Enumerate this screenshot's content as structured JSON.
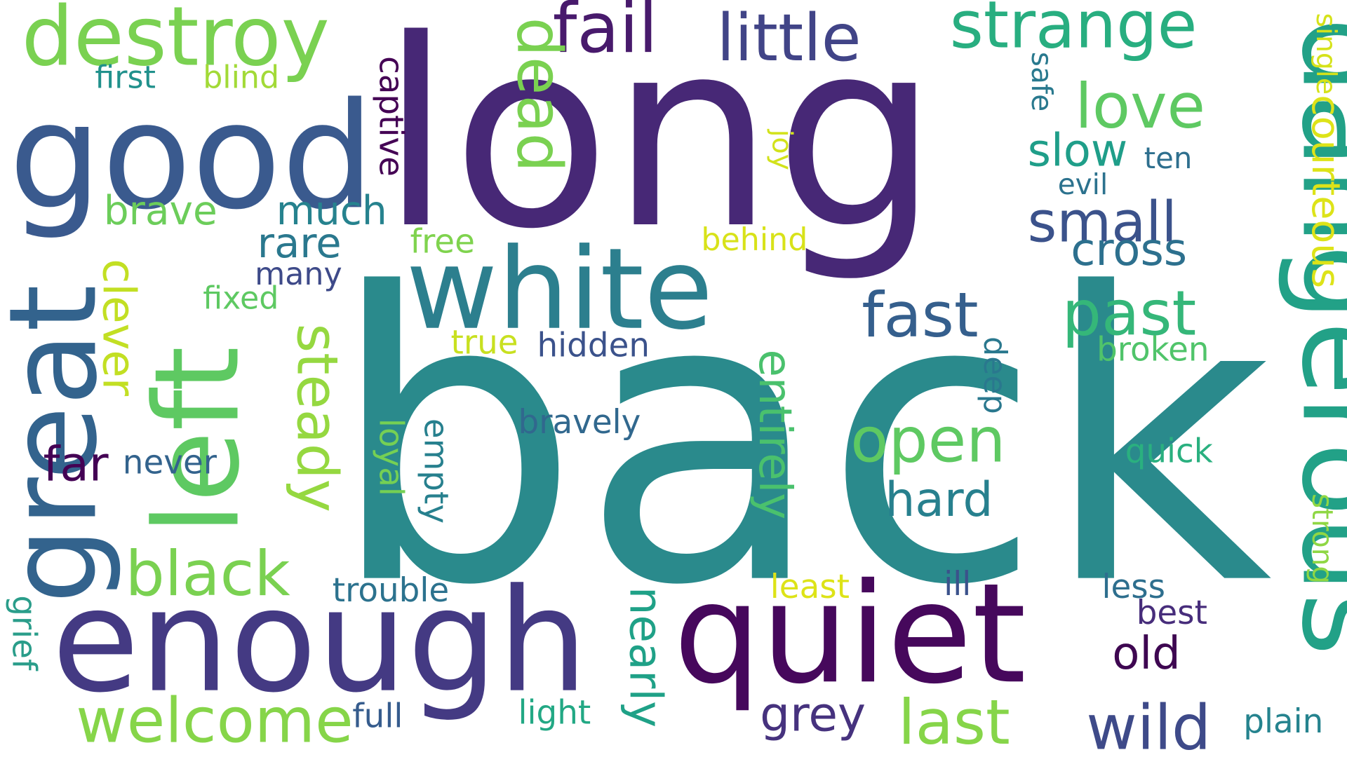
{
  "words": [
    {
      "text": "back",
      "color": "#2a8a8c"
    },
    {
      "text": "long",
      "color": "#472876"
    },
    {
      "text": "enough",
      "color": "#443a83"
    },
    {
      "text": "quiet",
      "color": "#46085c"
    },
    {
      "text": "good",
      "color": "#3a5a8e"
    },
    {
      "text": "white",
      "color": "#2c7f8e"
    },
    {
      "text": "dangerous",
      "color": "#22a187"
    },
    {
      "text": "great",
      "color": "#33638d"
    },
    {
      "text": "left",
      "color": "#5ec962"
    },
    {
      "text": "destroy",
      "color": "#7ad151"
    },
    {
      "text": "fail",
      "color": "#481a6c"
    },
    {
      "text": "little",
      "color": "#414487"
    },
    {
      "text": "strange",
      "color": "#28ae80"
    },
    {
      "text": "dead",
      "color": "#7ad151"
    },
    {
      "text": "love",
      "color": "#5ec962"
    },
    {
      "text": "courteous",
      "color": "#dde318"
    },
    {
      "text": "single",
      "color": "#d5e21a"
    },
    {
      "text": "first",
      "color": "#21918c"
    },
    {
      "text": "blind",
      "color": "#a2da37"
    },
    {
      "text": "captive",
      "color": "#440154"
    },
    {
      "text": "safe",
      "color": "#29798e"
    },
    {
      "text": "joy",
      "color": "#d2e21b"
    },
    {
      "text": "slow",
      "color": "#1f9e89"
    },
    {
      "text": "ten",
      "color": "#2e6f8e"
    },
    {
      "text": "evil",
      "color": "#2c728e"
    },
    {
      "text": "small",
      "color": "#3b528b"
    },
    {
      "text": "cross",
      "color": "#2d708e"
    },
    {
      "text": "brave",
      "color": "#6ccd5a"
    },
    {
      "text": "much",
      "color": "#26828e"
    },
    {
      "text": "rare",
      "color": "#2a788e"
    },
    {
      "text": "free",
      "color": "#7fd34e"
    },
    {
      "text": "behind",
      "color": "#d8e219"
    },
    {
      "text": "many",
      "color": "#3e4a89"
    },
    {
      "text": "fixed",
      "color": "#5ec962"
    },
    {
      "text": "steady",
      "color": "#95d840"
    },
    {
      "text": "clever",
      "color": "#c2df23"
    },
    {
      "text": "fast",
      "color": "#355f8d"
    },
    {
      "text": "past",
      "color": "#35b779"
    },
    {
      "text": "true",
      "color": "#c8e020"
    },
    {
      "text": "hidden",
      "color": "#3b528b"
    },
    {
      "text": "deep",
      "color": "#2a788e"
    },
    {
      "text": "broken",
      "color": "#50c46a"
    },
    {
      "text": "entirely",
      "color": "#4ac16d"
    },
    {
      "text": "open",
      "color": "#5ec962"
    },
    {
      "text": "bravely",
      "color": "#31688e"
    },
    {
      "text": "far",
      "color": "#440154"
    },
    {
      "text": "never",
      "color": "#33638d"
    },
    {
      "text": "loyal",
      "color": "#75d054"
    },
    {
      "text": "empty",
      "color": "#27808e"
    },
    {
      "text": "quick",
      "color": "#2ab07f"
    },
    {
      "text": "hard",
      "color": "#27808e"
    },
    {
      "text": "strong",
      "color": "#8fd744"
    },
    {
      "text": "black",
      "color": "#7ad151"
    },
    {
      "text": "trouble",
      "color": "#2c728e"
    },
    {
      "text": "least",
      "color": "#dde318"
    },
    {
      "text": "ill",
      "color": "#3b528b"
    },
    {
      "text": "less",
      "color": "#2e6f8e"
    },
    {
      "text": "best",
      "color": "#472d7b"
    },
    {
      "text": "old",
      "color": "#3e0751"
    },
    {
      "text": "nearly",
      "color": "#1fa187"
    },
    {
      "text": "grief",
      "color": "#2a9d8a"
    },
    {
      "text": "welcome",
      "color": "#86d549"
    },
    {
      "text": "full",
      "color": "#365c8d"
    },
    {
      "text": "light",
      "color": "#22a884"
    },
    {
      "text": "grey",
      "color": "#46327e"
    },
    {
      "text": "last",
      "color": "#86d549"
    },
    {
      "text": "wild",
      "color": "#3e4a89"
    },
    {
      "text": "plain",
      "color": "#25838e"
    }
  ]
}
